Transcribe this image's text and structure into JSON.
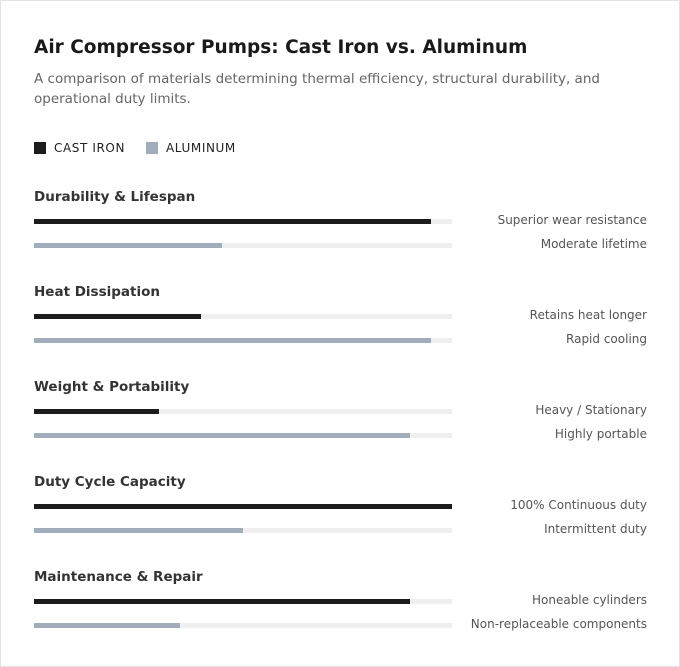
{
  "chart_data": {
    "type": "bar",
    "orientation": "horizontal",
    "title": "Air Compressor Pumps: Cast Iron vs. Aluminum",
    "subtitle": "A comparison of materials determining thermal efficiency, structural durability, and operational duty limits.",
    "categories": [
      "Durability & Lifespan",
      "Heat Dissipation",
      "Weight & Portability",
      "Duty Cycle Capacity",
      "Maintenance & Repair"
    ],
    "xlim": [
      0,
      100
    ],
    "series": [
      {
        "name": "CAST IRON",
        "color": "#1c1c1c",
        "values": [
          95,
          40,
          30,
          100,
          90
        ],
        "annotations": [
          "Superior wear resistance",
          "Retains heat longer",
          "Heavy / Stationary",
          "100% Continuous duty",
          "Honeable cylinders"
        ]
      },
      {
        "name": "ALUMINUM",
        "color": "#a3acba",
        "values": [
          45,
          95,
          90,
          50,
          35
        ],
        "annotations": [
          "Moderate lifetime",
          "Rapid cooling",
          "Highly portable",
          "Intermittent duty",
          "Non-replaceable components"
        ]
      }
    ],
    "legend": "top-left"
  }
}
